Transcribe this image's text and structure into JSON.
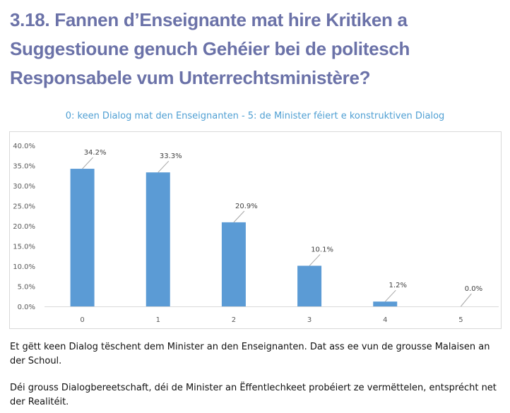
{
  "heading": "3.18. Fannen d’Enseignante mat hire Kritiken a Suggestioune genuch Gehéier bei de politesch Responsabele vum Unterrechtsministère?",
  "paragraphs": [
    "Et gëtt keen Dialog tëschent dem Minister an den Enseignanten. Dat ass ee vun de grousse Malaisen an der Schoul.",
    "Déi grouss Dialogbereetschaft, déi de Minister an Ëffentlechkeet probéiert ze vermëttelen, entsprécht net der Realitéit."
  ],
  "colors": {
    "bar": "#5b9bd5",
    "title": "#4f9fd3",
    "heading": "#6b72a8"
  },
  "chart_data": {
    "type": "bar",
    "title": "0: keen Dialog mat den Enseignanten - 5: de Minister féiert e konstruktiven Dialog",
    "categories": [
      "0",
      "1",
      "2",
      "3",
      "4",
      "5"
    ],
    "values": [
      34.2,
      33.3,
      20.9,
      10.1,
      1.2,
      0.0
    ],
    "data_labels": [
      "34.2%",
      "33.3%",
      "20.9%",
      "10.1%",
      "1.2%",
      "0.0%"
    ],
    "y_ticks": [
      "0.0%",
      "5.0%",
      "10.0%",
      "15.0%",
      "20.0%",
      "25.0%",
      "30.0%",
      "35.0%",
      "40.0%"
    ],
    "ylim": [
      0,
      40
    ],
    "xlabel": "",
    "ylabel": "",
    "grid": false,
    "legend": "none"
  }
}
